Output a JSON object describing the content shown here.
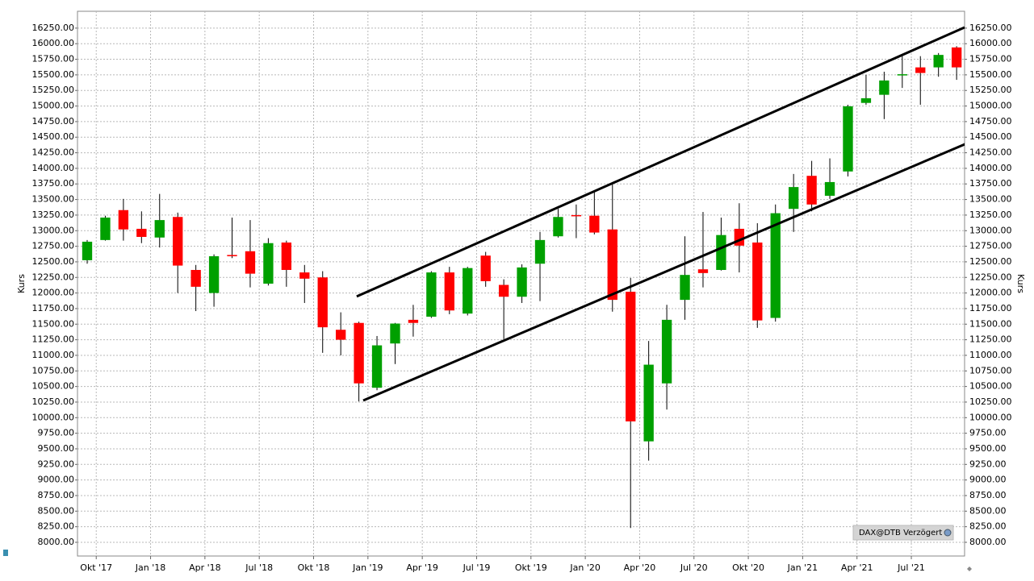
{
  "chart_data": {
    "type": "candlestick",
    "ylabel": "Kurs",
    "source_label": "DAX@DTB Verzögert",
    "x": [
      0,
      1,
      2,
      3,
      4,
      5,
      6,
      7,
      8,
      9,
      10,
      11,
      12,
      13,
      14,
      15,
      16,
      17,
      18,
      19,
      20,
      21,
      22,
      23,
      24,
      25,
      26,
      27,
      28,
      29,
      30,
      31,
      32,
      33,
      34,
      35,
      36,
      37,
      38,
      39,
      40,
      41,
      42,
      43,
      44,
      45,
      46,
      47,
      48
    ],
    "open": [
      12526,
      12850,
      13330,
      13030,
      12890,
      13220,
      12370,
      12000,
      12610,
      12670,
      12150,
      12810,
      12330,
      12250,
      11410,
      11520,
      10480,
      11190,
      11570,
      11620,
      12330,
      11670,
      12600,
      12130,
      11940,
      12470,
      12910,
      13250,
      13240,
      13020,
      12020,
      9620,
      10550,
      11890,
      12380,
      12370,
      13030,
      12810,
      11600,
      13350,
      13880,
      13560,
      13950,
      15050,
      15180,
      15500,
      15620,
      15620,
      15940
    ],
    "high": [
      12850,
      13240,
      13510,
      13310,
      13590,
      13290,
      12450,
      12620,
      13210,
      13170,
      12880,
      12840,
      12450,
      12350,
      11690,
      11540,
      11310,
      11520,
      11810,
      12350,
      12420,
      12420,
      12660,
      12220,
      12460,
      12980,
      13350,
      13420,
      13640,
      13740,
      12240,
      11230,
      11810,
      12910,
      13300,
      13210,
      13440,
      13120,
      13420,
      13910,
      14120,
      14160,
      15020,
      15500,
      15550,
      15800,
      15800,
      15850,
      15960
    ],
    "low": [
      12470,
      12840,
      12840,
      12800,
      12730,
      12000,
      11710,
      11780,
      12560,
      12090,
      12120,
      12100,
      11840,
      11040,
      11000,
      10260,
      10440,
      10860,
      11300,
      11600,
      11660,
      11640,
      12100,
      11260,
      11840,
      11870,
      12890,
      12880,
      12940,
      11700,
      8230,
      9310,
      10130,
      11570,
      12090,
      12360,
      12330,
      11440,
      11540,
      12980,
      13310,
      13510,
      13870,
      15020,
      14790,
      15290,
      15020,
      15470,
      15420
    ],
    "close": [
      12823,
      13210,
      13020,
      12900,
      13170,
      12440,
      12100,
      12590,
      12590,
      12310,
      12800,
      12370,
      12230,
      11450,
      11250,
      10550,
      11160,
      11510,
      11520,
      12330,
      11720,
      12400,
      12190,
      11940,
      12410,
      12850,
      13220,
      13240,
      12970,
      11890,
      9940,
      10850,
      11570,
      12290,
      12320,
      12930,
      12760,
      11560,
      13280,
      13700,
      13420,
      13780,
      14995,
      15125,
      15410,
      15510,
      15530,
      15820,
      15620
    ],
    "up_color": "#00a000",
    "down_color": "#ff0000",
    "xlim": [
      -0.535,
      48.44
    ],
    "xticks": [
      {
        "value": 0.5,
        "label": "Okt '17"
      },
      {
        "value": 3.5,
        "label": "Jan '18"
      },
      {
        "value": 6.5,
        "label": "Apr '18"
      },
      {
        "value": 9.5,
        "label": "Jul '18"
      },
      {
        "value": 12.5,
        "label": "Okt '18"
      },
      {
        "value": 15.5,
        "label": "Jan '19"
      },
      {
        "value": 18.5,
        "label": "Apr '19"
      },
      {
        "value": 21.5,
        "label": "Jul '19"
      },
      {
        "value": 24.5,
        "label": "Okt '19"
      },
      {
        "value": 27.5,
        "label": "Jan '20"
      },
      {
        "value": 30.5,
        "label": "Apr '20"
      },
      {
        "value": 33.5,
        "label": "Jul '20"
      },
      {
        "value": 36.5,
        "label": "Okt '20"
      },
      {
        "value": 39.5,
        "label": "Jan '21"
      },
      {
        "value": 42.5,
        "label": "Apr '21"
      },
      {
        "value": 45.5,
        "label": "Jul '21"
      }
    ],
    "ylim": [
      7780,
      16520
    ],
    "yticks": [
      {
        "value": 8000,
        "label": "8000.00"
      },
      {
        "value": 8250,
        "label": "8250.00"
      },
      {
        "value": 8500,
        "label": "8500.00"
      },
      {
        "value": 8750,
        "label": "8750.00"
      },
      {
        "value": 9000,
        "label": "9000.00"
      },
      {
        "value": 9250,
        "label": "9250.00"
      },
      {
        "value": 9500,
        "label": "9500.00"
      },
      {
        "value": 9750,
        "label": "9750.00"
      },
      {
        "value": 10000,
        "label": "10000.00"
      },
      {
        "value": 10250,
        "label": "10250.00"
      },
      {
        "value": 10500,
        "label": "10500.00"
      },
      {
        "value": 10750,
        "label": "10750.00"
      },
      {
        "value": 11000,
        "label": "11000.00"
      },
      {
        "value": 11250,
        "label": "11250.00"
      },
      {
        "value": 11500,
        "label": "11500.00"
      },
      {
        "value": 11750,
        "label": "11750.00"
      },
      {
        "value": 12000,
        "label": "12000.00"
      },
      {
        "value": 12250,
        "label": "12250.00"
      },
      {
        "value": 12500,
        "label": "12500.00"
      },
      {
        "value": 12750,
        "label": "12750.00"
      },
      {
        "value": 13000,
        "label": "13000.00"
      },
      {
        "value": 13250,
        "label": "13250.00"
      },
      {
        "value": 13500,
        "label": "13500.00"
      },
      {
        "value": 13750,
        "label": "13750.00"
      },
      {
        "value": 14000,
        "label": "14000.00"
      },
      {
        "value": 14250,
        "label": "14250.00"
      },
      {
        "value": 14500,
        "label": "14500.00"
      },
      {
        "value": 14750,
        "label": "14750.00"
      },
      {
        "value": 15000,
        "label": "15000.00"
      },
      {
        "value": 15250,
        "label": "15250.00"
      },
      {
        "value": 15500,
        "label": "15500.00"
      },
      {
        "value": 15750,
        "label": "15750.00"
      },
      {
        "value": 16000,
        "label": "16000.00"
      },
      {
        "value": 16250,
        "label": "16250.00"
      }
    ],
    "grid": true,
    "trendlines": [
      {
        "x": [
          14.88,
          48.44
        ],
        "y": [
          11944,
          16262
        ],
        "color": "#000000"
      },
      {
        "x": [
          15.24,
          48.66
        ],
        "y": [
          10276,
          14413
        ],
        "color": "#000000"
      }
    ]
  }
}
